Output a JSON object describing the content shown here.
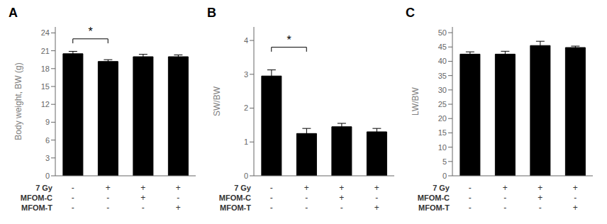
{
  "chart_data": [
    {
      "type": "bar",
      "title": "A",
      "ylabel": "Body weight, BW (g)",
      "categories": [
        null,
        null,
        null,
        null
      ],
      "values": [
        20.5,
        19.2,
        20.0,
        20.0
      ],
      "errors": [
        0.4,
        0.3,
        0.4,
        0.3
      ],
      "color": "#000000",
      "ylim": [
        0,
        25
      ],
      "yticks": [
        0,
        3,
        6,
        9,
        12,
        15,
        18,
        21,
        24
      ],
      "grid": false,
      "annotations": [
        {
          "text": "*",
          "from": 0,
          "to": 1,
          "y": 23.0
        }
      ],
      "table": {
        "row_labels": [
          "7 Gy",
          "MFOM-C",
          "MFOM-T"
        ],
        "cells": [
          [
            "-",
            "+",
            "+",
            "+"
          ],
          [
            "-",
            "-",
            "+",
            "-"
          ],
          [
            "-",
            "-",
            "-",
            "+"
          ]
        ]
      }
    },
    {
      "type": "bar",
      "title": "B",
      "ylabel": "SW/BW",
      "categories": [
        null,
        null,
        null,
        null
      ],
      "values": [
        2.95,
        1.25,
        1.45,
        1.3
      ],
      "errors": [
        0.18,
        0.15,
        0.1,
        0.1
      ],
      "color": "#000000",
      "ylim": [
        0,
        4.4
      ],
      "yticks": [
        0,
        1,
        2,
        3,
        4
      ],
      "grid": false,
      "annotations": [
        {
          "text": "*",
          "from": 0,
          "to": 1,
          "y": 3.8
        }
      ],
      "table": {
        "row_labels": [
          "7 Gy",
          "MFOM-C",
          "MFOM-T"
        ],
        "cells": [
          [
            "-",
            "+",
            "+",
            "+"
          ],
          [
            "-",
            "-",
            "+",
            "-"
          ],
          [
            "-",
            "-",
            "-",
            "+"
          ]
        ]
      }
    },
    {
      "type": "bar",
      "title": "C",
      "ylabel": "LW/BW",
      "categories": [
        null,
        null,
        null,
        null
      ],
      "values": [
        42.5,
        42.5,
        45.5,
        44.8
      ],
      "errors": [
        0.8,
        1.0,
        1.5,
        0.5
      ],
      "color": "#000000",
      "ylim": [
        0,
        52
      ],
      "yticks": [
        0,
        5,
        10,
        15,
        20,
        25,
        30,
        35,
        40,
        45,
        50
      ],
      "grid": false,
      "annotations": [],
      "table": {
        "row_labels": [
          "7 Gy",
          "MFOM-C",
          "MFOM-T"
        ],
        "cells": [
          [
            "-",
            "+",
            "+",
            "+"
          ],
          [
            "-",
            "-",
            "+",
            "-"
          ],
          [
            "-",
            "-",
            "-",
            "+"
          ]
        ]
      }
    }
  ]
}
